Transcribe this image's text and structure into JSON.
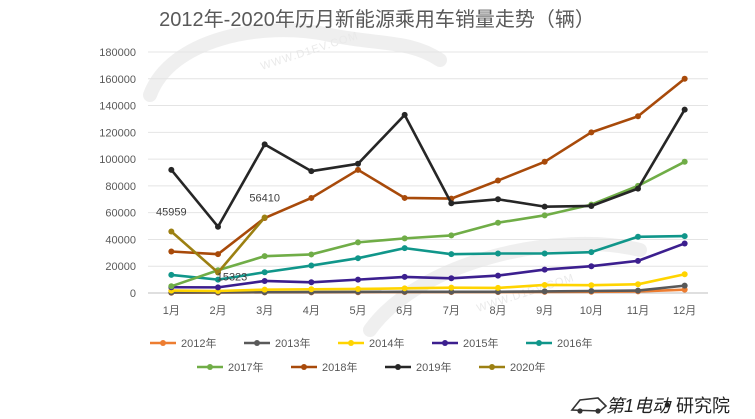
{
  "chart_data": {
    "type": "line",
    "title": "2012年-2020年历月新能源乘用车销量走势（辆）",
    "categories": [
      "1月",
      "2月",
      "3月",
      "4月",
      "5月",
      "6月",
      "7月",
      "8月",
      "9月",
      "10月",
      "11月",
      "12月"
    ],
    "ylim": [
      0,
      180000
    ],
    "yticks": [
      0,
      20000,
      40000,
      60000,
      80000,
      100000,
      120000,
      140000,
      160000,
      180000
    ],
    "legend_position": "bottom",
    "series": [
      {
        "name": "2012年",
        "color": "#ed7d31",
        "values": [
          200,
          300,
          500,
          500,
          600,
          700,
          700,
          700,
          800,
          900,
          1200,
          2500
        ]
      },
      {
        "name": "2013年",
        "color": "#595959",
        "values": [
          400,
          500,
          600,
          700,
          800,
          900,
          900,
          900,
          1200,
          1500,
          1800,
          5500
        ]
      },
      {
        "name": "2014年",
        "color": "#ffd400",
        "values": [
          1800,
          1500,
          2500,
          2800,
          3000,
          3500,
          4000,
          3800,
          6000,
          5800,
          6500,
          14000
        ]
      },
      {
        "name": "2015年",
        "color": "#3c1f8f",
        "values": [
          4300,
          4200,
          9000,
          8000,
          10000,
          12000,
          11000,
          13000,
          17500,
          20000,
          24000,
          37000
        ]
      },
      {
        "name": "2016年",
        "color": "#10968a",
        "values": [
          13500,
          10000,
          15500,
          20500,
          26000,
          33500,
          29000,
          29500,
          29500,
          30500,
          42000,
          42500
        ]
      },
      {
        "name": "2017年",
        "color": "#70ad47",
        "values": [
          5000,
          17000,
          27500,
          28800,
          37800,
          40800,
          43000,
          52500,
          58000,
          66000,
          80000,
          98000
        ]
      },
      {
        "name": "2018年",
        "color": "#a84a0a",
        "values": [
          31000,
          29000,
          56000,
          71000,
          92000,
          71000,
          70500,
          84000,
          98000,
          120000,
          132000,
          160000
        ]
      },
      {
        "name": "2019年",
        "color": "#262626",
        "values": [
          92000,
          49500,
          111000,
          91000,
          96500,
          133000,
          67000,
          70000,
          64500,
          65000,
          78000,
          137000
        ]
      },
      {
        "name": "2020年",
        "color": "#9c8012",
        "values": [
          45959,
          15323,
          56410,
          null,
          null,
          null,
          null,
          null,
          null,
          null,
          null,
          null
        ]
      }
    ],
    "annotations": [
      {
        "text": "45959",
        "series": "2020年",
        "index": 0
      },
      {
        "text": "15323",
        "series": "2020年",
        "index": 1
      },
      {
        "text": "56410",
        "series": "2020年",
        "index": 2
      }
    ]
  },
  "watermark": {
    "url": "WWW.D1EV.COM"
  },
  "footer": {
    "brand": "第1电动",
    "separator": "•",
    "label": "研究院"
  }
}
